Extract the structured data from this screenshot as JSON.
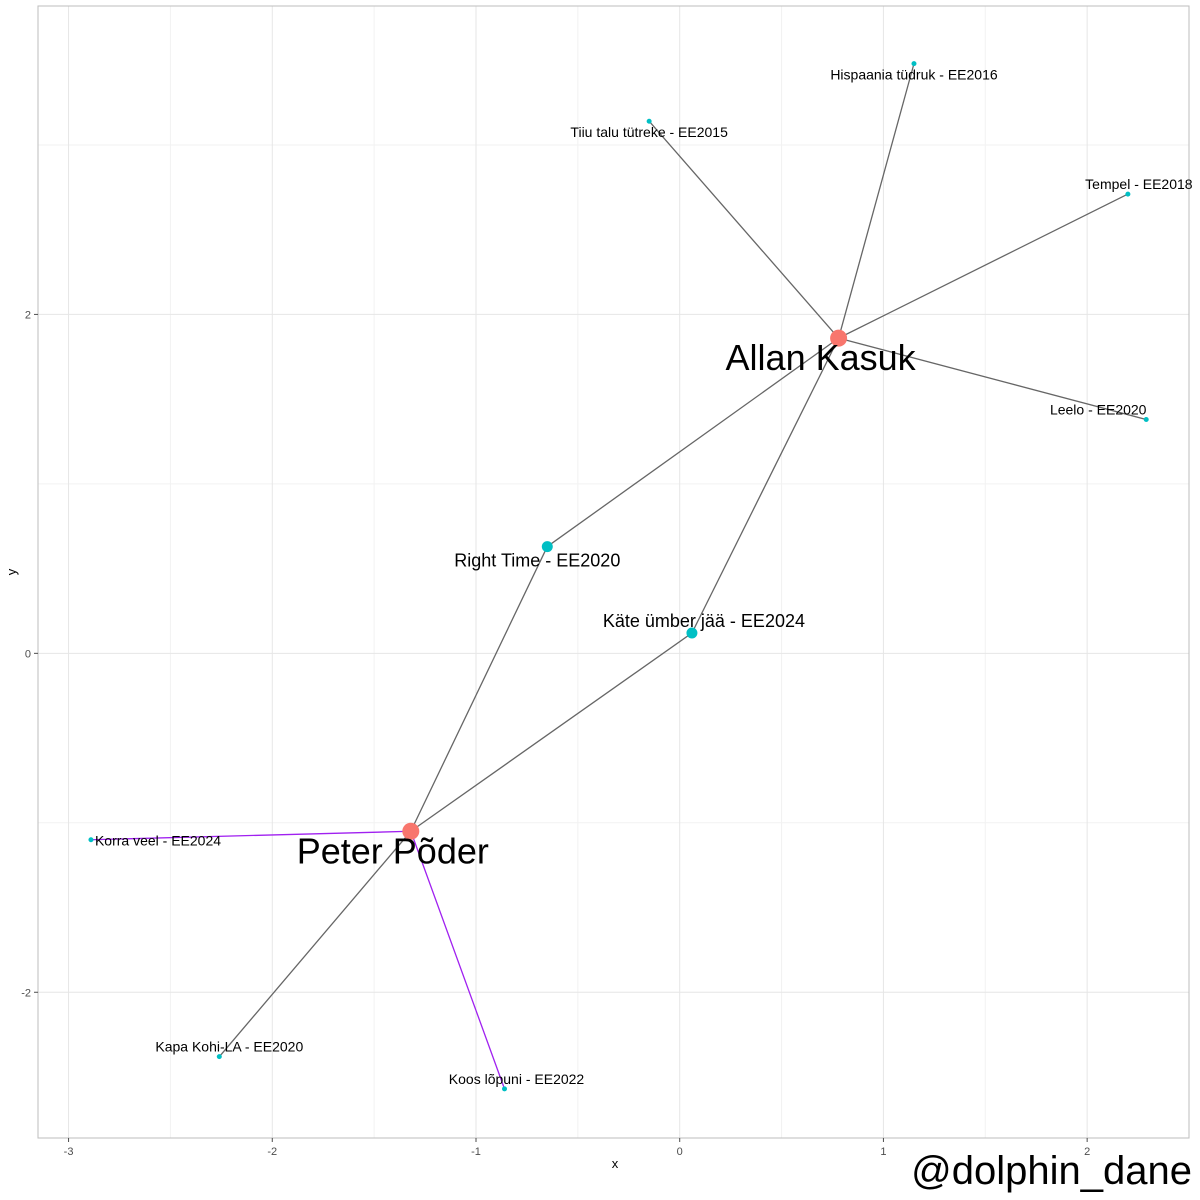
{
  "chart_data": {
    "type": "scatter",
    "subtype": "network-graph",
    "title": "",
    "xlabel": "x",
    "ylabel": "y",
    "xlim": [
      -3.15,
      2.5
    ],
    "ylim": [
      -2.86,
      3.82
    ],
    "xticks": [
      -3,
      -2,
      -1,
      0,
      1,
      2
    ],
    "yticks": [
      -2,
      0,
      2
    ],
    "grid": true,
    "colors": {
      "artist": "#F8766D",
      "song": "#00BFC4",
      "edge_default": "#666666",
      "edge_highlight": "#A020F0"
    },
    "nodes": [
      {
        "id": "allan",
        "label": "Allan Kasuk",
        "kind": "artist",
        "x": 0.78,
        "y": 1.86
      },
      {
        "id": "peter",
        "label": "Peter Põder",
        "kind": "artist",
        "x": -1.32,
        "y": -1.05
      },
      {
        "id": "right_time",
        "label": "Right Time - EE2020",
        "kind": "song",
        "x": -0.65,
        "y": 0.63
      },
      {
        "id": "kate",
        "label": "Käte ümber jää - EE2024",
        "kind": "song",
        "x": 0.06,
        "y": 0.12
      },
      {
        "id": "hispaania",
        "label": "Hispaania tüdruk - EE2016",
        "kind": "song",
        "x": 1.15,
        "y": 3.48
      },
      {
        "id": "tiiu",
        "label": "Tiiu talu tütreke - EE2015",
        "kind": "song",
        "x": -0.15,
        "y": 3.14
      },
      {
        "id": "tempel",
        "label": "Tempel - EE2018",
        "kind": "song",
        "x": 2.2,
        "y": 2.71
      },
      {
        "id": "leelo",
        "label": "Leelo - EE2020",
        "kind": "song",
        "x": 2.29,
        "y": 1.38
      },
      {
        "id": "korra",
        "label": "Korra veel - EE2024",
        "kind": "song",
        "x": -2.89,
        "y": -1.1
      },
      {
        "id": "kapa",
        "label": "Kapa Kohi-LA - EE2020",
        "kind": "song",
        "x": -2.26,
        "y": -2.38
      },
      {
        "id": "koos",
        "label": "Koos lõpuni - EE2022",
        "kind": "song",
        "x": -0.86,
        "y": -2.57
      }
    ],
    "edges": [
      {
        "from": "allan",
        "to": "hispaania",
        "color": "edge_default"
      },
      {
        "from": "allan",
        "to": "tiiu",
        "color": "edge_default"
      },
      {
        "from": "allan",
        "to": "tempel",
        "color": "edge_default"
      },
      {
        "from": "allan",
        "to": "leelo",
        "color": "edge_default"
      },
      {
        "from": "allan",
        "to": "right_time",
        "color": "edge_default"
      },
      {
        "from": "allan",
        "to": "kate",
        "color": "edge_default"
      },
      {
        "from": "peter",
        "to": "right_time",
        "color": "edge_default"
      },
      {
        "from": "peter",
        "to": "kate",
        "color": "edge_default"
      },
      {
        "from": "peter",
        "to": "kapa",
        "color": "edge_default"
      },
      {
        "from": "peter",
        "to": "korra",
        "color": "edge_highlight"
      },
      {
        "from": "peter",
        "to": "koos",
        "color": "edge_highlight"
      }
    ]
  },
  "watermark": "@dolphin_dane"
}
